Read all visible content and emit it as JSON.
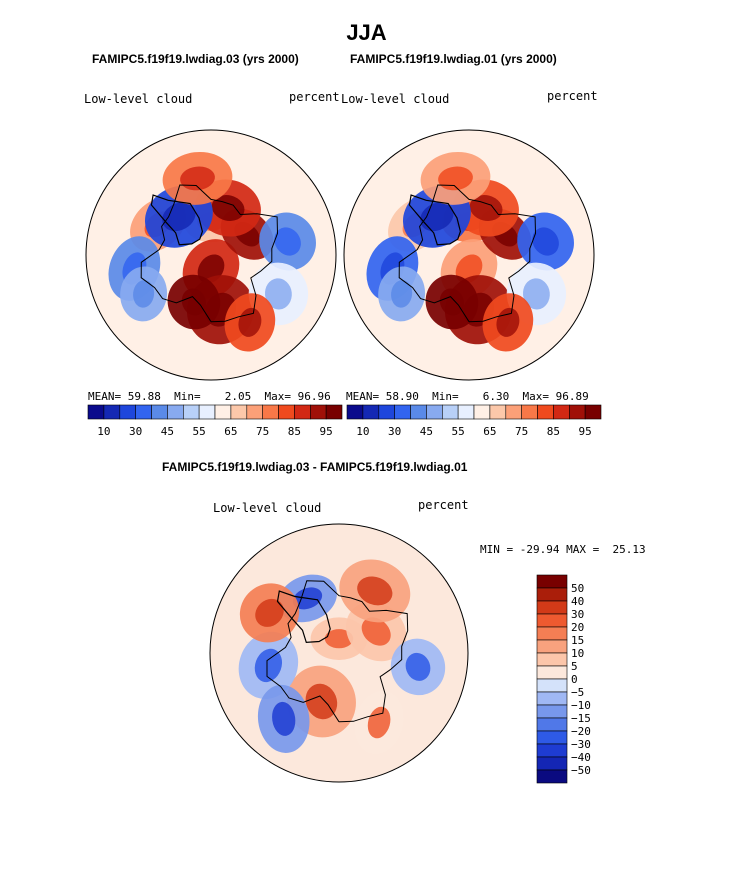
{
  "page": {
    "season": "JJA",
    "subtitle_left": "FAMIPC5.f19f19.lwdiag.03 (yrs 2000)",
    "subtitle_right": "FAMIPC5.f19f19.lwdiag.01 (yrs 2000)",
    "diff_title": "FAMIPC5.f19f19.lwdiag.03 - FAMIPC5.f19f19.lwdiag.01"
  },
  "colors": {
    "seq": [
      "#0a0a8c",
      "#1428b4",
      "#1e46dc",
      "#3264f0",
      "#5a8ae8",
      "#88aaf0",
      "#b8d0f8",
      "#e8f0ff",
      "#fff0e6",
      "#fcc8aa",
      "#fca078",
      "#f87848",
      "#f04a1e",
      "#d22814",
      "#a01008",
      "#780000"
    ],
    "div": [
      "#0a0a80",
      "#1426b4",
      "#1e3cd2",
      "#2e5ae6",
      "#5078e8",
      "#7898ec",
      "#a0b8f4",
      "#d4e2fa",
      "#fce8dc",
      "#fcc6aa",
      "#f8a27e",
      "#f47e54",
      "#ee5a30",
      "#d23a18",
      "#aa1e0a",
      "#780000"
    ]
  },
  "chart_data": [
    {
      "type": "heatmap",
      "projection": "north-polar-stereographic",
      "title": "FAMIPC5.f19f19.lwdiag.03 (yrs 2000)",
      "field": "Low-level cloud",
      "units": "percent",
      "stats": {
        "mean": "59.88",
        "min": "2.05",
        "max": "96.96"
      },
      "levels": [
        5,
        10,
        20,
        30,
        40,
        45,
        50,
        55,
        60,
        65,
        70,
        75,
        80,
        85,
        90
      ],
      "colorbar_labels": [
        "10",
        "30",
        "45",
        "55",
        "65",
        "75",
        "85",
        "95"
      ],
      "regions": [
        {
          "lat": 78,
          "lon": 0,
          "value": 60
        },
        {
          "lat": 85,
          "lon": 180,
          "value": 80
        },
        {
          "lat": 70,
          "lon": 170,
          "value": 88
        },
        {
          "lat": 75,
          "lon": 60,
          "value": 85
        },
        {
          "lat": 72,
          "lon": 20,
          "value": 80
        },
        {
          "lat": 72,
          "lon": -160,
          "value": 90
        },
        {
          "lat": 68,
          "lon": -60,
          "value": 65
        },
        {
          "lat": 72,
          "lon": -40,
          "value": 15
        },
        {
          "lat": 62,
          "lon": 80,
          "value": 30
        },
        {
          "lat": 62,
          "lon": -100,
          "value": 30
        },
        {
          "lat": 62,
          "lon": -120,
          "value": 40
        },
        {
          "lat": 62,
          "lon": 120,
          "value": 50
        },
        {
          "lat": 62,
          "lon": -10,
          "value": 70
        },
        {
          "lat": 62,
          "lon": 150,
          "value": 75
        }
      ]
    },
    {
      "type": "heatmap",
      "projection": "north-polar-stereographic",
      "title": "FAMIPC5.f19f19.lwdiag.01 (yrs 2000)",
      "field": "Low-level cloud",
      "units": "percent",
      "stats": {
        "mean": "58.90",
        "min": "6.30",
        "max": "96.89"
      },
      "levels": [
        5,
        10,
        20,
        30,
        40,
        45,
        50,
        55,
        60,
        65,
        70,
        75,
        80,
        85,
        90
      ],
      "colorbar_labels": [
        "10",
        "30",
        "45",
        "55",
        "65",
        "75",
        "85",
        "95"
      ],
      "regions": [
        {
          "lat": 78,
          "lon": 0,
          "value": 70
        },
        {
          "lat": 85,
          "lon": 180,
          "value": 68
        },
        {
          "lat": 70,
          "lon": 170,
          "value": 88
        },
        {
          "lat": 75,
          "lon": 60,
          "value": 85
        },
        {
          "lat": 72,
          "lon": 20,
          "value": 78
        },
        {
          "lat": 72,
          "lon": -160,
          "value": 90
        },
        {
          "lat": 68,
          "lon": -60,
          "value": 60
        },
        {
          "lat": 72,
          "lon": -40,
          "value": 15
        },
        {
          "lat": 62,
          "lon": 80,
          "value": 25
        },
        {
          "lat": 62,
          "lon": -100,
          "value": 28
        },
        {
          "lat": 62,
          "lon": -120,
          "value": 40
        },
        {
          "lat": 62,
          "lon": 120,
          "value": 50
        },
        {
          "lat": 62,
          "lon": -10,
          "value": 65
        },
        {
          "lat": 62,
          "lon": 150,
          "value": 75
        }
      ]
    },
    {
      "type": "heatmap",
      "projection": "north-polar-stereographic",
      "title": "FAMIPC5.f19f19.lwdiag.03 - FAMIPC5.f19f19.lwdiag.01",
      "field": "Low-level cloud",
      "units": "percent",
      "stats_text": "MIN = -29.94 MAX =  25.13",
      "stats": {
        "min": "-29.94",
        "max": "25.13"
      },
      "levels": [
        -50,
        -40,
        -30,
        -20,
        -15,
        -10,
        -5,
        0,
        5,
        10,
        15,
        20,
        30,
        40,
        50
      ],
      "colorbar_labels": [
        "50",
        "40",
        "30",
        "20",
        "15",
        "10",
        "5",
        "0",
        "−5",
        "−10",
        "−15",
        "−20",
        "−30",
        "−40",
        "−50"
      ],
      "regions": [
        {
          "lat": 85,
          "lon": 0,
          "value": 6
        },
        {
          "lat": 75,
          "lon": 60,
          "value": 8
        },
        {
          "lat": 72,
          "lon": -160,
          "value": 10
        },
        {
          "lat": 68,
          "lon": -30,
          "value": -12
        },
        {
          "lat": 65,
          "lon": -100,
          "value": -6
        },
        {
          "lat": 62,
          "lon": 100,
          "value": -8
        },
        {
          "lat": 62,
          "lon": 150,
          "value": 3
        },
        {
          "lat": 65,
          "lon": 30,
          "value": 12
        },
        {
          "lat": 62,
          "lon": -60,
          "value": 15
        },
        {
          "lat": 60,
          "lon": -140,
          "value": -14
        }
      ]
    }
  ]
}
